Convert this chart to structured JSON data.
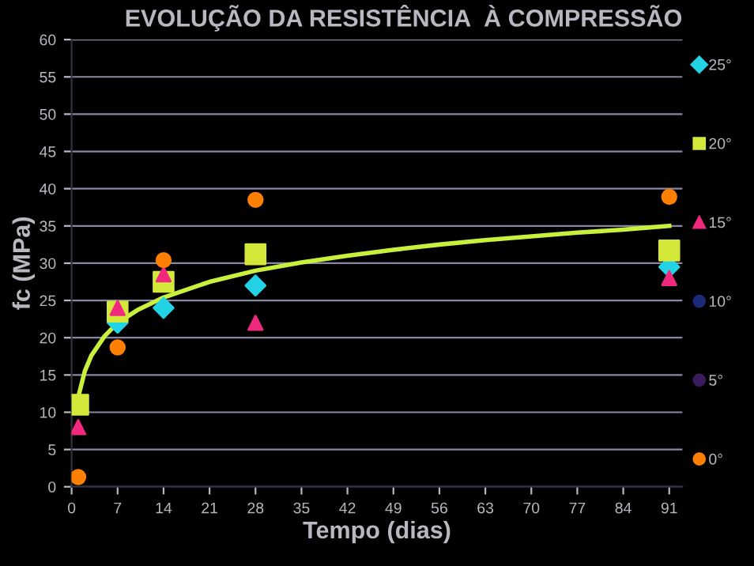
{
  "chart_data": {
    "type": "scatter",
    "title": "EVOLUÇÃO DA RESISTÊNCIA  À COMPRESSÃO",
    "xlabel": "Tempo (dias)",
    "ylabel": "fc (MPa)",
    "x": [
      1,
      7,
      14,
      28,
      91
    ],
    "series": [
      {
        "name": "25°",
        "color": "#22d3e6",
        "marker": "diamond",
        "values": [
          null,
          22,
          24,
          27,
          29.5
        ]
      },
      {
        "name": "20°",
        "color": "#d4e83a",
        "marker": "square",
        "values": [
          11,
          23.5,
          27.5,
          31.2,
          31.7
        ]
      },
      {
        "name": "15°",
        "color": "#f0287e",
        "marker": "triangle",
        "values": [
          8,
          24,
          28.5,
          22,
          28
        ]
      },
      {
        "name": "10°",
        "color": "#1c2a7a",
        "marker": "circle",
        "values": [
          null,
          null,
          null,
          null,
          null
        ]
      },
      {
        "name": "5°",
        "color": "#3a1c5e",
        "marker": "circle",
        "values": [
          null,
          null,
          null,
          null,
          null
        ]
      },
      {
        "name": "0°",
        "color": "#ff8000",
        "marker": "circle",
        "values": [
          1.3,
          18.7,
          30.4,
          38.5,
          38.9
        ]
      },
      {
        "type": "line",
        "color": "#c8f03c",
        "x": [
          1,
          2,
          3,
          5,
          7,
          10,
          14,
          21,
          28,
          35,
          42,
          49,
          56,
          63,
          70,
          77,
          84,
          91
        ],
        "values": [
          12,
          15.5,
          17.6,
          20.2,
          22,
          23.7,
          25.4,
          27.5,
          29,
          30.1,
          31,
          31.8,
          32.5,
          33.1,
          33.6,
          34.1,
          34.5,
          35
        ]
      }
    ],
    "xlim": [
      0,
      93
    ],
    "xticks": [
      0,
      7,
      14,
      21,
      28,
      35,
      42,
      49,
      56,
      63,
      70,
      77,
      84,
      91
    ],
    "ylim": [
      0,
      60
    ],
    "yticks": [
      0,
      5,
      10,
      15,
      20,
      25,
      30,
      35,
      40,
      45,
      50,
      55,
      60
    ],
    "grid": "y",
    "legend": "right"
  }
}
